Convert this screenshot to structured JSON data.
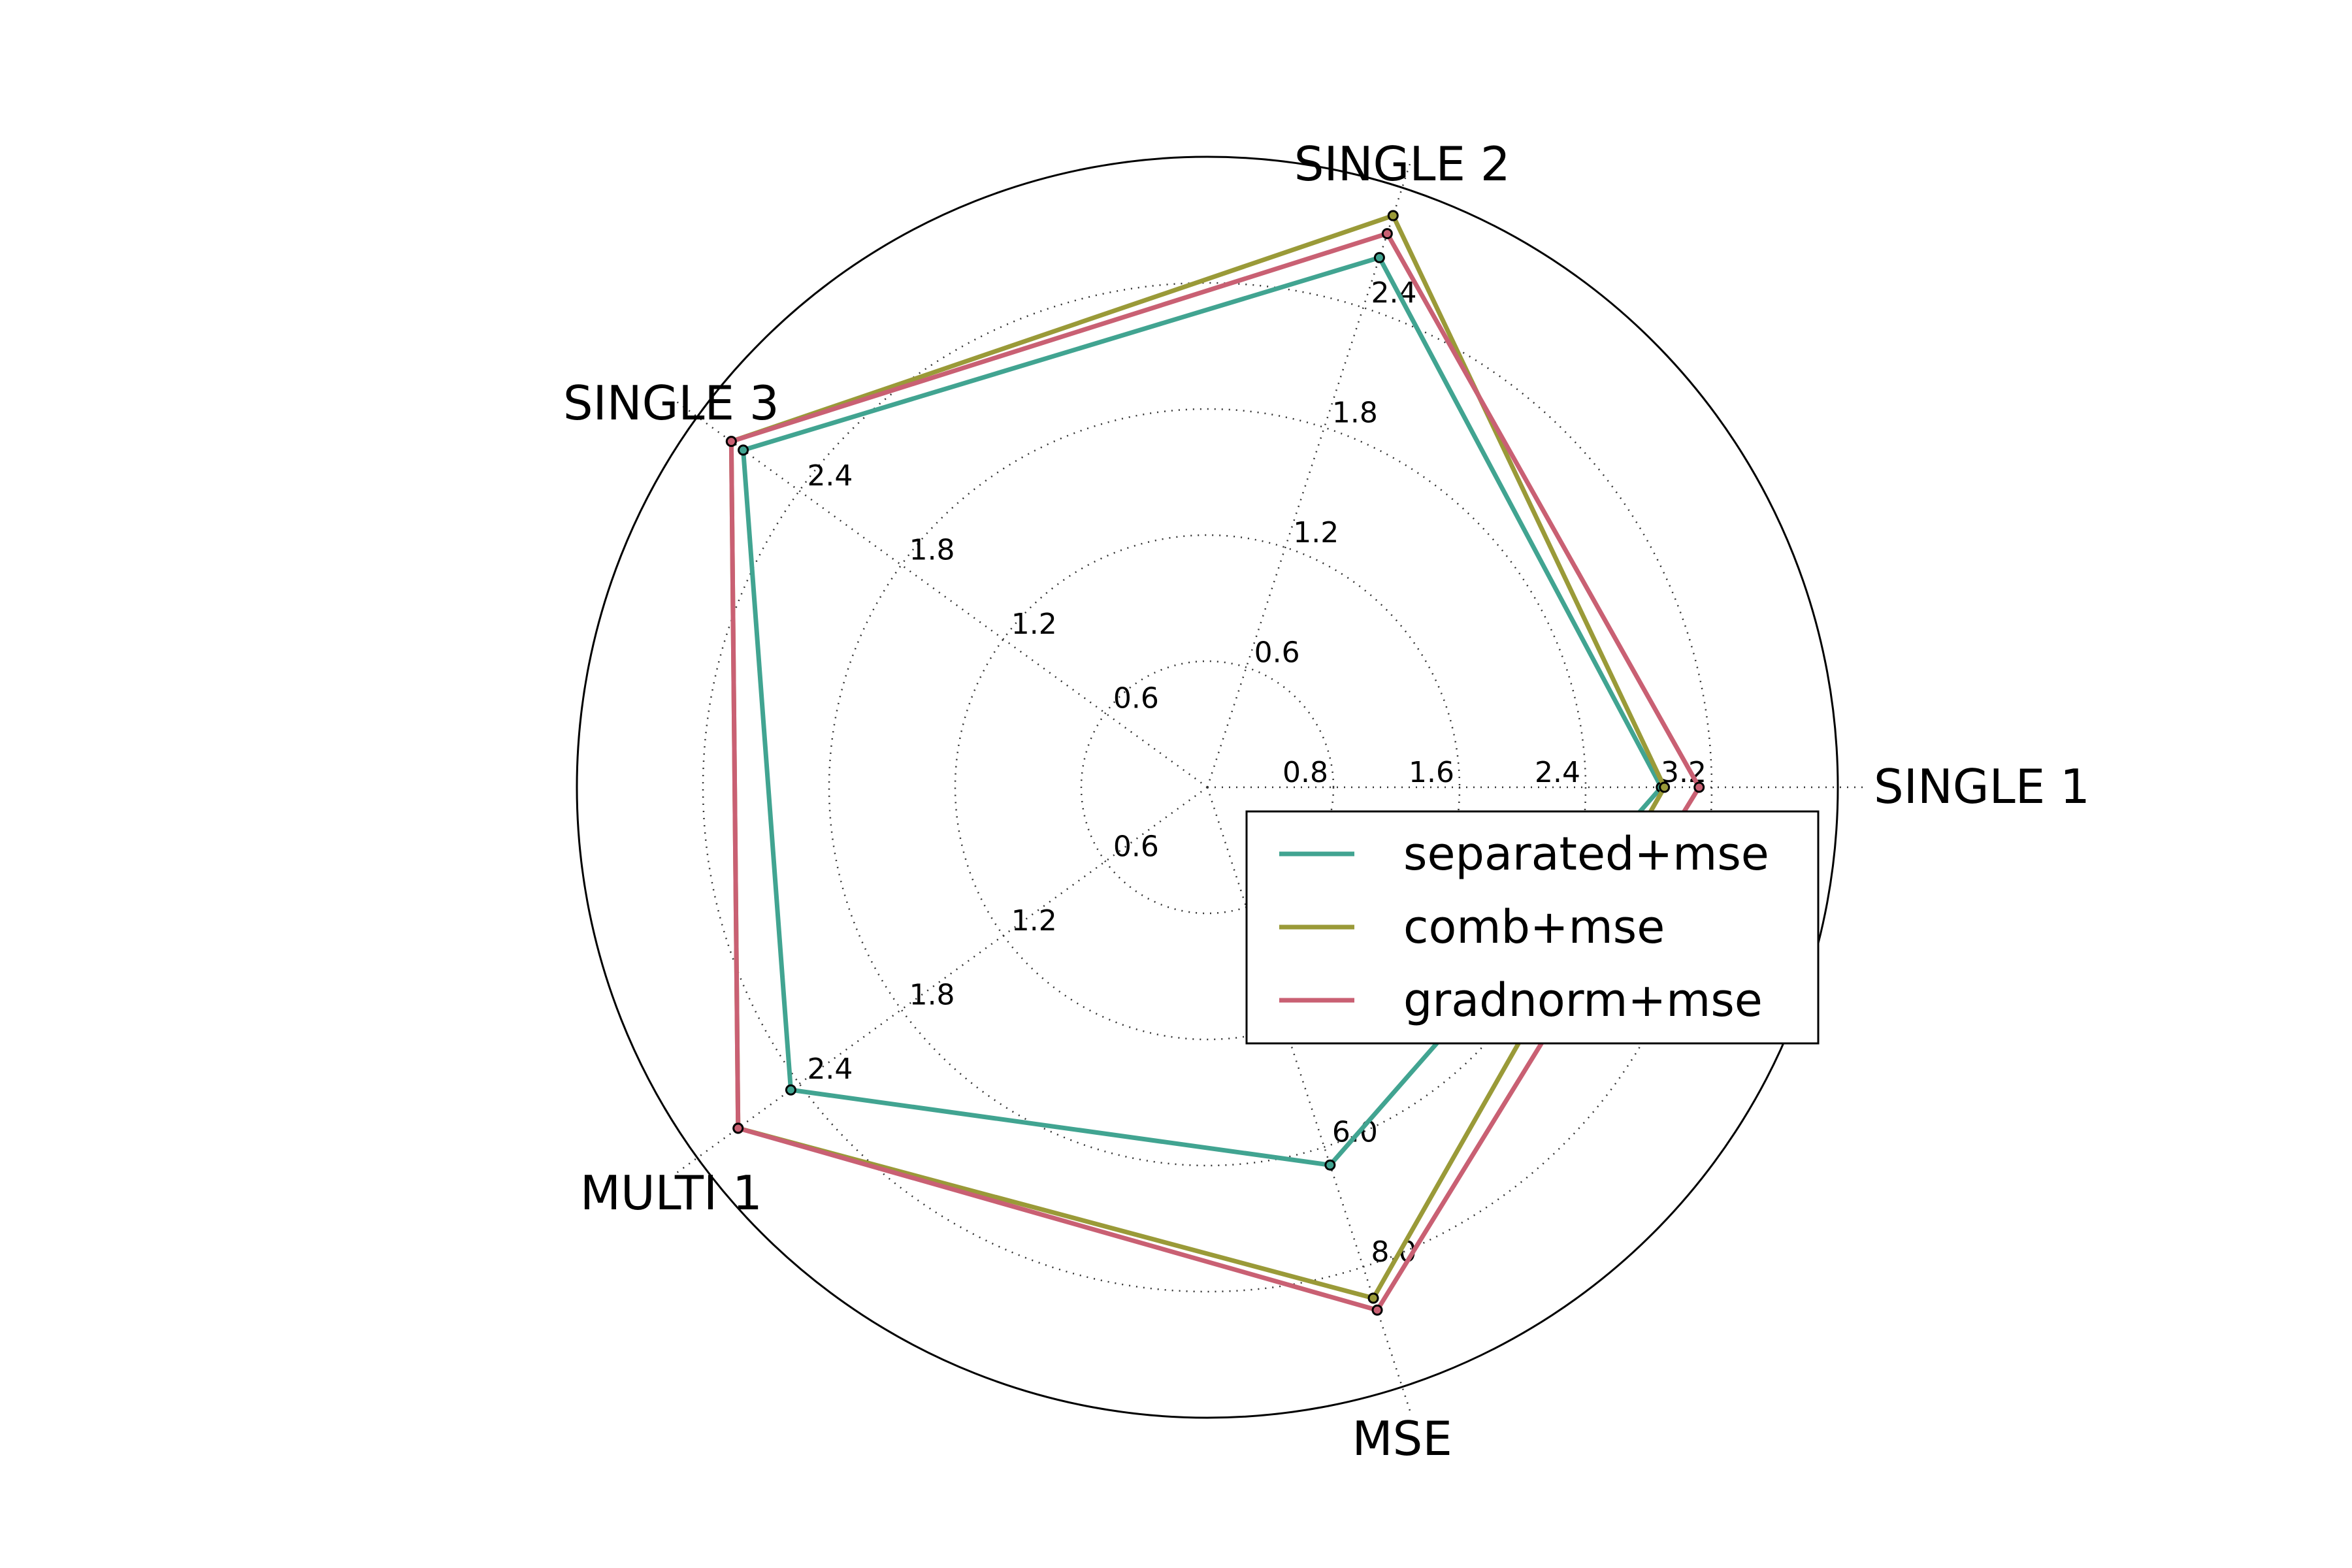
{
  "chart_data": {
    "type": "radar",
    "axes": [
      "SINGLE 1",
      "SINGLE 2",
      "SINGLE 3",
      "MULTI 1",
      "MSE"
    ],
    "axis_ticks": [
      {
        "axis": "SINGLE 1",
        "ticks": [
          0.8,
          1.6,
          2.4,
          3.2
        ],
        "labels": [
          "0.8",
          "1.6",
          "2.4",
          "3.2"
        ],
        "max": 4.0
      },
      {
        "axis": "SINGLE 2",
        "ticks": [
          0.6,
          1.2,
          1.8,
          2.4
        ],
        "labels": [
          "0.6",
          "1.2",
          "1.8",
          "2.4"
        ],
        "max": 3.0
      },
      {
        "axis": "SINGLE 3",
        "ticks": [
          0.6,
          1.2,
          1.8,
          2.4
        ],
        "labels": [
          "0.6",
          "1.2",
          "1.8",
          "2.4"
        ],
        "max": 3.0
      },
      {
        "axis": "MULTI 1",
        "ticks": [
          0.6,
          1.2,
          1.8,
          2.4
        ],
        "labels": [
          "0.6",
          "1.2",
          "1.8",
          "2.4"
        ],
        "max": 3.0
      },
      {
        "axis": "MSE",
        "ticks": [
          6.0,
          8.0
        ],
        "labels": [
          "6.0",
          "8.0"
        ],
        "max": 10.0
      }
    ],
    "series": [
      {
        "name": "separated+mse",
        "color": "#41a491",
        "values": [
          2.88,
          2.65,
          2.73,
          2.45,
          6.3
        ]
      },
      {
        "name": "comb+mse",
        "color": "#9a9a38",
        "values": [
          2.9,
          2.86,
          2.8,
          2.76,
          8.52
        ]
      },
      {
        "name": "gradnorm+mse",
        "color": "#c96073",
        "values": [
          3.12,
          2.77,
          2.8,
          2.76,
          8.72
        ]
      }
    ],
    "grid": true,
    "legend": "right"
  }
}
